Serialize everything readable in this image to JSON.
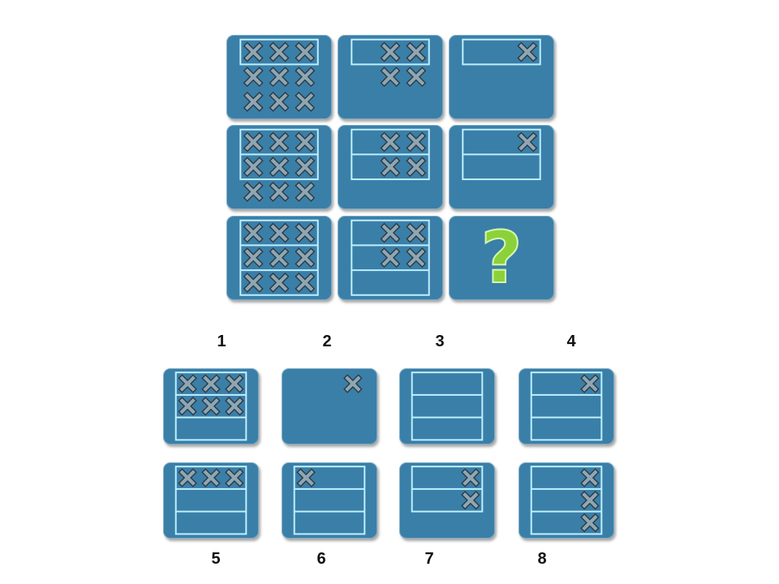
{
  "puzzle": {
    "grid": [
      {
        "rows": 3,
        "crosses": [
          3,
          3,
          3
        ],
        "frame_rows": 1
      },
      {
        "rows": 2,
        "crosses": [
          2,
          2
        ],
        "frame_rows": 1
      },
      {
        "rows": 1,
        "crosses": [
          1
        ],
        "frame_rows": 1
      },
      {
        "rows": 3,
        "crosses": [
          3,
          3,
          3
        ],
        "frame_rows": 2
      },
      {
        "rows": 2,
        "crosses": [
          2,
          2
        ],
        "frame_rows": 2
      },
      {
        "rows": 2,
        "crosses": [
          1,
          0
        ],
        "frame_rows": 2
      },
      {
        "rows": 3,
        "crosses": [
          3,
          3,
          3
        ],
        "frame_rows": 3
      },
      {
        "rows": 3,
        "crosses": [
          2,
          2,
          0
        ],
        "frame_rows": 3
      },
      {
        "question": true,
        "question_text": "?"
      }
    ],
    "options": [
      {
        "label": "1",
        "rows": 3,
        "crosses": [
          3,
          3,
          0
        ],
        "frame_rows": 3
      },
      {
        "label": "2",
        "rows": 1,
        "crosses": [
          1
        ],
        "frame_rows": 0
      },
      {
        "label": "3",
        "rows": 3,
        "crosses": [
          0,
          0,
          0
        ],
        "frame_rows": 3
      },
      {
        "label": "4",
        "rows": 3,
        "crosses": [
          1,
          0,
          0
        ],
        "frame_rows": 3
      },
      {
        "label": "5",
        "rows": 3,
        "crosses": [
          3,
          0,
          0
        ],
        "frame_rows": 3
      },
      {
        "label": "6",
        "rows": 3,
        "crosses": [
          1,
          0,
          0
        ],
        "frame_rows": 3,
        "align": "left"
      },
      {
        "label": "7",
        "rows": 2,
        "crosses": [
          1,
          1
        ],
        "frame_rows": 2
      },
      {
        "label": "8",
        "rows": 3,
        "crosses": [
          1,
          1,
          1
        ],
        "frame_rows": 3
      }
    ]
  },
  "colors": {
    "tile": "#3a7fa8",
    "line": "#bfefff",
    "cross_fill": "#8fa6b3",
    "cross_edge": "#2b3a44",
    "question": "#8bd23a"
  }
}
